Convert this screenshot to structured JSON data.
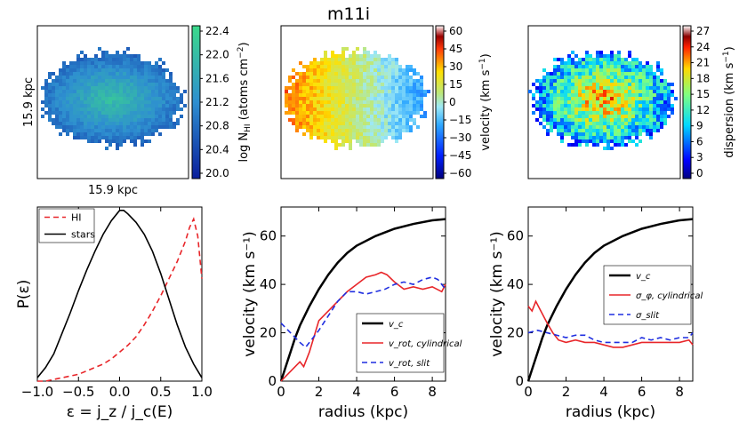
{
  "figure_title": "m11i",
  "maps": {
    "scale_label": "15.9 kpc",
    "hi": {
      "cbar_ticks": [
        "22.4",
        "22.0",
        "21.6",
        "21.2",
        "20.8",
        "20.4",
        "20.0"
      ],
      "cbar_label_pre": "log N",
      "cbar_label_sub": "HI",
      "cbar_label_post": " (atoms cm",
      "cbar_label_sup": "−2",
      "cbar_label_end": ")"
    },
    "velocity": {
      "cbar_ticks": [
        "60",
        "45",
        "30",
        "15",
        "0",
        "−15",
        "−30",
        "−45",
        "−60"
      ],
      "cbar_label_pre": "velocity (km s",
      "cbar_label_sup": "−1",
      "cbar_label_end": ")"
    },
    "dispersion": {
      "cbar_ticks": [
        "27",
        "24",
        "21",
        "18",
        "15",
        "12",
        "9",
        "6",
        "3",
        "0"
      ],
      "cbar_label_pre": "dispersion (km s",
      "cbar_label_sup": "−1",
      "cbar_label_end": ")"
    }
  },
  "chart_data": [
    {
      "type": "line",
      "title": "",
      "xlabel": "ε = j_z / j_c(E)",
      "ylabel": "P(ε)",
      "xlim": [
        -1.0,
        1.0
      ],
      "xticks": [
        "−1.0",
        "−0.5",
        "0.0",
        "0.5",
        "1.0"
      ],
      "legend": "top-left",
      "series": [
        {
          "name": "HI",
          "style": "dashed",
          "color": "#e8262a",
          "x": [
            -1.0,
            -0.9,
            -0.8,
            -0.7,
            -0.6,
            -0.5,
            -0.4,
            -0.3,
            -0.2,
            -0.1,
            0.0,
            0.1,
            0.2,
            0.3,
            0.4,
            0.5,
            0.6,
            0.7,
            0.8,
            0.85,
            0.9,
            0.95,
            1.0
          ],
          "y": [
            0.0,
            0.0,
            0.01,
            0.02,
            0.03,
            0.04,
            0.06,
            0.08,
            0.1,
            0.13,
            0.17,
            0.21,
            0.26,
            0.33,
            0.41,
            0.5,
            0.6,
            0.7,
            0.82,
            0.9,
            0.95,
            0.85,
            0.6
          ]
        },
        {
          "name": "stars",
          "style": "solid",
          "color": "#000000",
          "x": [
            -1.0,
            -0.9,
            -0.8,
            -0.7,
            -0.6,
            -0.5,
            -0.4,
            -0.3,
            -0.2,
            -0.1,
            0.0,
            0.05,
            0.1,
            0.2,
            0.3,
            0.4,
            0.5,
            0.6,
            0.7,
            0.8,
            0.9,
            1.0
          ],
          "y": [
            0.02,
            0.08,
            0.16,
            0.28,
            0.4,
            0.53,
            0.65,
            0.76,
            0.86,
            0.94,
            1.0,
            1.0,
            0.98,
            0.93,
            0.86,
            0.76,
            0.63,
            0.48,
            0.33,
            0.2,
            0.1,
            0.02
          ]
        }
      ]
    },
    {
      "type": "line",
      "title": "",
      "xlabel": "radius (kpc)",
      "ylabel": "velocity (km s⁻¹)",
      "xlim": [
        0,
        8.7
      ],
      "ylim": [
        0,
        72
      ],
      "xticks": [
        0,
        2,
        4,
        6,
        8
      ],
      "yticks": [
        0,
        20,
        40,
        60
      ],
      "legend": "bottom-right",
      "series": [
        {
          "name": "v_c",
          "style": "solid",
          "color": "#000000",
          "x": [
            0,
            0.25,
            0.5,
            0.75,
            1.0,
            1.5,
            2.0,
            2.5,
            3.0,
            3.5,
            4.0,
            5.0,
            6.0,
            7.0,
            8.0,
            8.7
          ],
          "y": [
            0,
            6,
            12,
            18,
            23,
            31,
            38,
            44,
            49,
            53,
            56,
            60,
            63,
            65,
            66.5,
            67
          ]
        },
        {
          "name": "v_rot, cylindrical",
          "style": "solid",
          "color": "#e8262a",
          "x": [
            0,
            0.5,
            1.0,
            1.2,
            1.5,
            2.0,
            2.5,
            3.0,
            3.5,
            4.0,
            4.5,
            5.0,
            5.3,
            5.6,
            6.0,
            6.5,
            7.0,
            7.5,
            8.0,
            8.5,
            8.7
          ],
          "y": [
            0,
            4,
            8,
            6,
            12,
            25,
            29,
            33,
            37,
            40,
            43,
            44,
            45,
            44,
            41,
            38,
            39,
            38,
            39,
            37,
            40
          ]
        },
        {
          "name": "v_rot, slit",
          "style": "dashed",
          "color": "#1f2ee0",
          "x": [
            0,
            0.5,
            1.0,
            1.3,
            1.6,
            2.0,
            2.5,
            3.0,
            3.5,
            4.0,
            4.5,
            5.0,
            5.5,
            6.0,
            6.5,
            7.0,
            7.5,
            8.0,
            8.3,
            8.7
          ],
          "y": [
            24,
            20,
            16,
            14,
            17,
            21,
            27,
            33,
            37,
            37,
            36,
            37,
            38,
            40,
            41,
            40,
            42,
            43,
            42,
            38
          ]
        }
      ]
    },
    {
      "type": "line",
      "title": "",
      "xlabel": "radius (kpc)",
      "ylabel": "velocity (km s⁻¹)",
      "xlim": [
        0,
        8.7
      ],
      "ylim": [
        0,
        72
      ],
      "xticks": [
        0,
        2,
        4,
        6,
        8
      ],
      "yticks": [
        0,
        20,
        40,
        60
      ],
      "legend": "right",
      "series": [
        {
          "name": "v_c",
          "style": "solid",
          "color": "#000000",
          "x": [
            0,
            0.25,
            0.5,
            0.75,
            1.0,
            1.5,
            2.0,
            2.5,
            3.0,
            3.5,
            4.0,
            5.0,
            6.0,
            7.0,
            8.0,
            8.7
          ],
          "y": [
            0,
            6,
            12,
            18,
            23,
            31,
            38,
            44,
            49,
            53,
            56,
            60,
            63,
            65,
            66.5,
            67
          ]
        },
        {
          "name": "σ_φ, cylindrical",
          "style": "solid",
          "color": "#e8262a",
          "x": [
            0,
            0.2,
            0.4,
            0.6,
            0.8,
            1.0,
            1.3,
            1.6,
            2.0,
            2.5,
            3.0,
            3.5,
            4.0,
            4.5,
            5.0,
            5.5,
            6.0,
            6.5,
            7.0,
            7.5,
            8.0,
            8.5,
            8.7
          ],
          "y": [
            31,
            29,
            33,
            30,
            27,
            24,
            20,
            17,
            16,
            17,
            16,
            16,
            15,
            14,
            14,
            15,
            16,
            16,
            16,
            16,
            16,
            17,
            15
          ]
        },
        {
          "name": "σ_slit",
          "style": "dashed",
          "color": "#1f2ee0",
          "x": [
            0,
            0.5,
            1.0,
            1.5,
            2.0,
            2.5,
            3.0,
            3.5,
            4.0,
            4.5,
            5.0,
            5.5,
            6.0,
            6.5,
            7.0,
            7.5,
            8.0,
            8.5,
            8.7
          ],
          "y": [
            20,
            21,
            20,
            19,
            18,
            19,
            19,
            17,
            16,
            16,
            16,
            16,
            18,
            17,
            18,
            17,
            18,
            18,
            20
          ]
        }
      ]
    }
  ]
}
